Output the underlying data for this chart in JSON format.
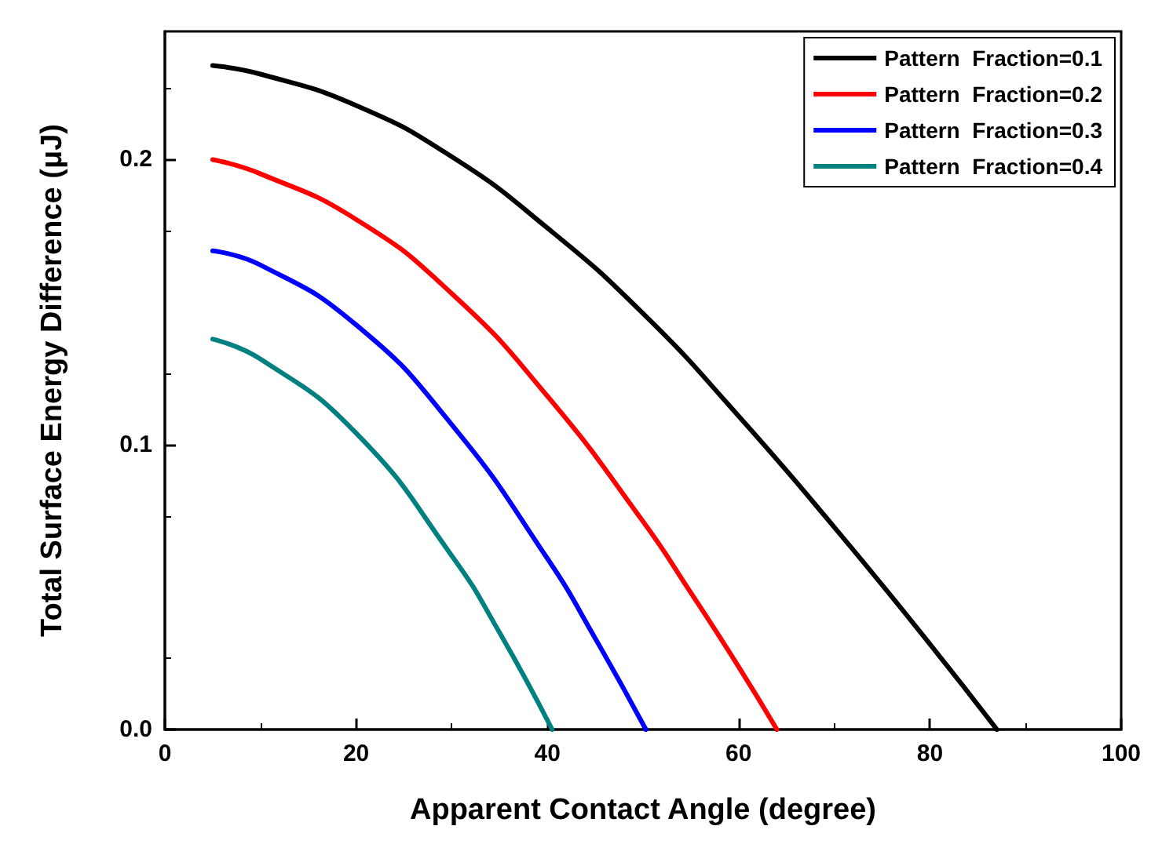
{
  "chart_data": {
    "type": "line",
    "xlabel": "Apparent Contact Angle (degree)",
    "ylabel": "Total Surface Energy Difference (μJ)",
    "xlim": [
      0,
      100
    ],
    "xticks": [
      0,
      20,
      40,
      60,
      80,
      100
    ],
    "ylim": [
      0,
      0.245
    ],
    "yticks": [
      {
        "value": 0,
        "label": "0.0"
      },
      {
        "value": 0.1,
        "label": "0.1"
      },
      {
        "value": 0.2,
        "label": "0.2"
      }
    ],
    "grid": false,
    "legend": "top right",
    "marker": "none",
    "line_style": "solid",
    "series": [
      {
        "name": "Pattern  Fraction=0.1",
        "color": "#000000",
        "x": [
          5,
          10,
          20,
          30,
          40,
          50,
          60,
          70,
          80,
          87
        ],
        "values": [
          0.233,
          0.23,
          0.219,
          0.201,
          0.176,
          0.146,
          0.11,
          0.071,
          0.03,
          0
        ]
      },
      {
        "name": "Pattern  Fraction=0.2",
        "color": "#ff0000",
        "x": [
          5,
          10,
          20,
          30,
          40,
          50,
          55,
          60,
          64
        ],
        "values": [
          0.2,
          0.195,
          0.179,
          0.153,
          0.117,
          0.073,
          0.048,
          0.022,
          0
        ]
      },
      {
        "name": "Pattern  Fraction=0.3",
        "color": "#0000ff",
        "x": [
          5,
          10,
          20,
          30,
          40,
          45,
          50.3
        ],
        "values": [
          0.168,
          0.163,
          0.142,
          0.107,
          0.06,
          0.032,
          0
        ]
      },
      {
        "name": "Pattern  Fraction=0.4",
        "color": "#008080",
        "x": [
          5,
          10,
          20,
          30,
          35,
          40.5
        ],
        "values": [
          0.137,
          0.13,
          0.104,
          0.061,
          0.034,
          0
        ]
      }
    ]
  }
}
